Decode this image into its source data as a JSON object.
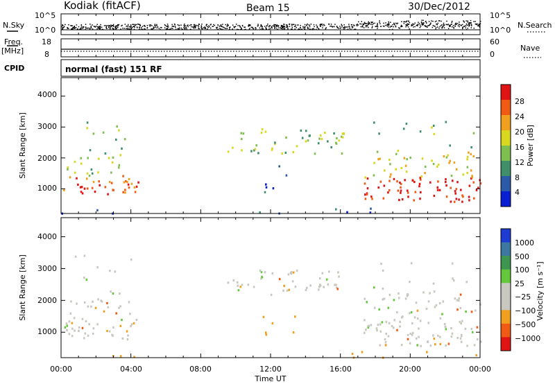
{
  "header": {
    "station": "Kodiak (fitACF)",
    "beam": "Beam 15",
    "date": "30/Dec/2012"
  },
  "top_panels": {
    "nsky_label": "N.Sky",
    "nsearch_label": "N.Search",
    "nsky_ticks": [
      "10^5",
      "10^0"
    ],
    "nsearch_ticks": [
      "10^5",
      "10^0"
    ],
    "freq_label_1": "Freq.",
    "freq_label_2": "[MHz]",
    "freq_ticks": [
      "18",
      "8"
    ],
    "nave_label": "Nave",
    "nave_ticks": [
      "60",
      "0"
    ],
    "cpid_label": "CPID",
    "cpid_text": "normal (fast) 151 RF"
  },
  "chart_data": [
    {
      "type": "heatmap",
      "name": "power",
      "ylabel": "Slant Range [km]",
      "xlabel": "",
      "yticks": [
        "4000",
        "3000",
        "2000",
        "1000"
      ],
      "ylim": [
        200,
        4600
      ],
      "xlim_hours": [
        0,
        24
      ],
      "colorbar_label": "Power [dB]",
      "colorbar_ticks": [
        "28",
        "24",
        "20",
        "16",
        "12",
        "8",
        "4"
      ],
      "colors": [
        "#0a1ed2",
        "#2a5aa8",
        "#3f8f6a",
        "#7fbf52",
        "#d8d81e",
        "#f0a01e",
        "#f05a14",
        "#e01414"
      ]
    },
    {
      "type": "heatmap",
      "name": "velocity",
      "ylabel": "Slant Range [km]",
      "xlabel": "Time UT",
      "yticks": [
        "4000",
        "3000",
        "2000",
        "1000"
      ],
      "xticks": [
        "00:00",
        "04:00",
        "08:00",
        "12:00",
        "16:00",
        "20:00",
        "00:00"
      ],
      "ylim": [
        200,
        4600
      ],
      "xlim_hours": [
        0,
        24
      ],
      "colorbar_label": "Velocity [m s⁻¹]",
      "colorbar_ticks": [
        "1000",
        "500",
        "100",
        "25",
        "−25",
        "−100",
        "−500",
        "−1000"
      ],
      "colors": [
        "#1e3cd2",
        "#3c78a0",
        "#3c9650",
        "#64c83c",
        "#c8c8c0",
        "#c8c8c0",
        "#f0a01e",
        "#f05a14",
        "#e01414"
      ]
    }
  ]
}
